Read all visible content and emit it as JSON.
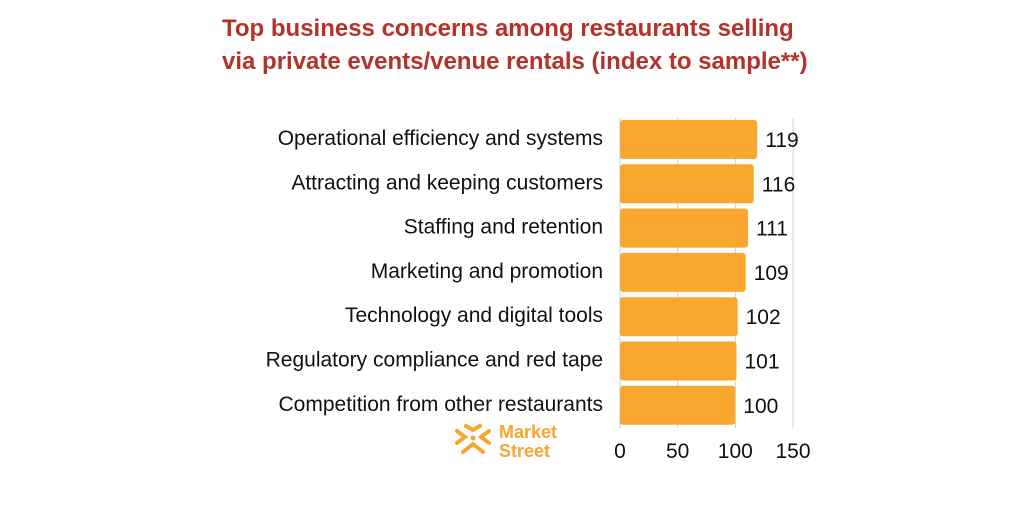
{
  "chart_data": {
    "type": "bar",
    "orientation": "horizontal",
    "title": "Top business concerns among restaurants selling via private events/venue rentals (index to sample**)",
    "categories": [
      "Operational efficiency and systems",
      "Attracting and keeping customers",
      "Staffing and retention",
      "Marketing and promotion",
      "Technology and digital tools",
      "Regulatory compliance and red tape",
      "Competition from other restaurants"
    ],
    "values": [
      119,
      116,
      111,
      109,
      102,
      101,
      100
    ],
    "xlim": [
      0,
      150
    ],
    "xticks": [
      0,
      50,
      100,
      150
    ],
    "xlabel": "",
    "ylabel": "",
    "grid": true,
    "bar_color": "#f9a72f",
    "title_color": "#b3322c"
  },
  "logo": {
    "line1": "Market",
    "line2": "Street",
    "color": "#f7a62f"
  }
}
